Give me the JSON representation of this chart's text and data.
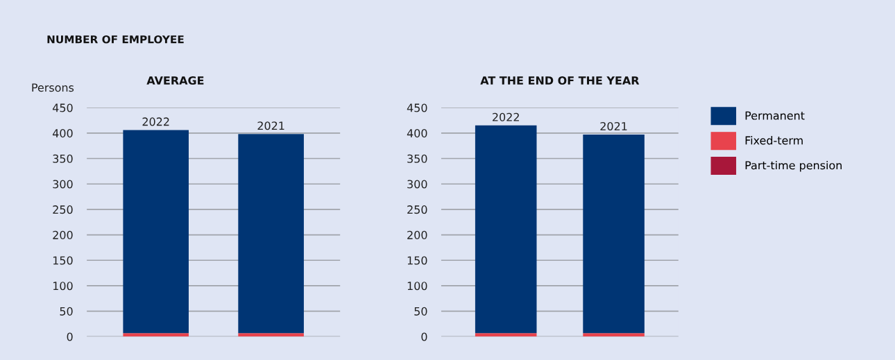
{
  "chart_data": [
    {
      "type": "bar",
      "title": "NUMBER OF EMPLOYEE",
      "subtitle": "AVERAGE",
      "ylabel": "Persons",
      "categories": [
        "2022",
        "2021"
      ],
      "stacked": true,
      "series": [
        {
          "color": "#a8173a",
          "values": [
            0,
            0
          ]
        },
        {
          "color": "#e8434d",
          "values": [
            7,
            7
          ]
        },
        {
          "color": "#003574",
          "values": [
            399,
            391
          ]
        }
      ],
      "ylim": [
        0,
        450
      ],
      "yticks": [
        0,
        50,
        100,
        150,
        200,
        250,
        300,
        350,
        400,
        450
      ],
      "grid": "y",
      "legend": false
    },
    {
      "type": "bar",
      "title": "AT THE END OF THE YEAR",
      "categories": [
        "2022",
        "2021"
      ],
      "stacked": true,
      "series": [
        {
          "name": "Part-time pension",
          "color": "#a8173a",
          "values": [
            0,
            0
          ]
        },
        {
          "name": "Fixed-term",
          "color": "#e8434d",
          "values": [
            7,
            7
          ]
        },
        {
          "name": "Permanent",
          "color": "#003574",
          "values": [
            408,
            390
          ]
        }
      ],
      "ylim": [
        0,
        450
      ],
      "yticks": [
        0,
        50,
        100,
        150,
        200,
        250,
        300,
        350,
        400,
        450
      ],
      "grid": "y",
      "legend": "right"
    }
  ]
}
